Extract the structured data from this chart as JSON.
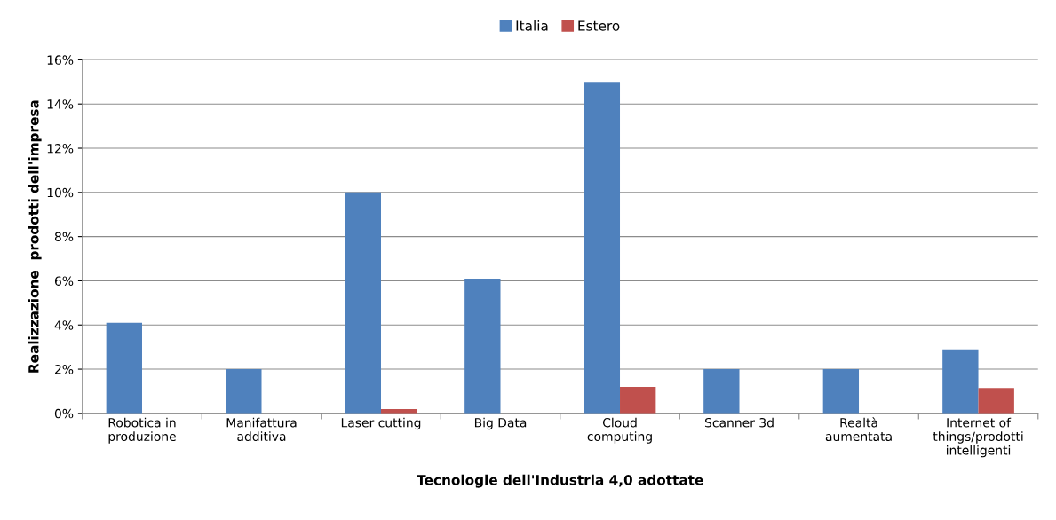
{
  "chart_data": {
    "type": "bar",
    "categories": [
      "Robotica in\nproduzione",
      "Manifattura\nadditiva",
      "Laser cutting",
      "Big Data",
      "Cloud\ncomputing",
      "Scanner 3d",
      "Realtà\naumentata",
      "Internet of\nthings/prodotti\nintelligenti"
    ],
    "series": [
      {
        "name": "Italia",
        "color": "#4f81bd",
        "values": [
          4.1,
          2.0,
          10.0,
          6.1,
          15.0,
          2.0,
          2.0,
          2.9
        ]
      },
      {
        "name": "Estero",
        "color": "#c0504d",
        "values": [
          null,
          null,
          0.2,
          null,
          1.2,
          null,
          null,
          1.15
        ]
      }
    ],
    "xlabel": "Tecnologie dell'Industria 4,0 adottate",
    "ylabel": "Realizzazione  prodotti dell'impresa",
    "ylim": [
      0,
      16
    ],
    "yticks": [
      {
        "value": 0,
        "label": "0%"
      },
      {
        "value": 2,
        "label": "2%"
      },
      {
        "value": 4,
        "label": "4%"
      },
      {
        "value": 6,
        "label": "6%"
      },
      {
        "value": 8,
        "label": "8%"
      },
      {
        "value": 10,
        "label": "10%"
      },
      {
        "value": 12,
        "label": "12%"
      },
      {
        "value": 14,
        "label": "14%"
      },
      {
        "value": 16,
        "label": "16%"
      }
    ],
    "grid": "y",
    "legend": "top"
  }
}
